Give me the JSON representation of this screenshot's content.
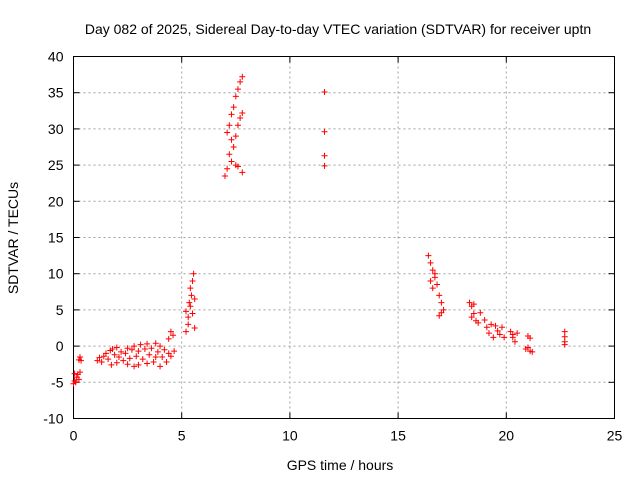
{
  "chart_data": {
    "type": "scatter",
    "title": "Day 082 of 2025, Sidereal Day-to-day VTEC variation (SDTVAR) for receiver uptn",
    "xlabel": "GPS time / hours",
    "ylabel": "SDTVAR / TECUs",
    "xlim": [
      0,
      25
    ],
    "ylim": [
      -10,
      40
    ],
    "xticks": [
      0,
      5,
      10,
      15,
      20,
      25
    ],
    "yticks": [
      -10,
      -5,
      0,
      5,
      10,
      15,
      20,
      25,
      30,
      35,
      40
    ],
    "grid": true,
    "marker": "+",
    "series": [
      {
        "name": "SDTVAR",
        "color": "#ff0000",
        "points": [
          [
            0.0,
            -5.2
          ],
          [
            0.05,
            -4.8
          ],
          [
            0.1,
            -5.0
          ],
          [
            0.15,
            -4.3
          ],
          [
            0.2,
            -3.9
          ],
          [
            0.25,
            -4.6
          ],
          [
            0.3,
            -3.6
          ],
          [
            0.05,
            -3.8
          ],
          [
            0.35,
            -2.0
          ],
          [
            0.3,
            -1.5
          ],
          [
            0.25,
            -1.9
          ],
          [
            1.1,
            -2.0
          ],
          [
            1.2,
            -1.6
          ],
          [
            1.3,
            -2.2
          ],
          [
            1.4,
            -1.4
          ],
          [
            1.5,
            -1.0
          ],
          [
            1.6,
            -1.8
          ],
          [
            1.7,
            -0.6
          ],
          [
            1.75,
            -2.6
          ],
          [
            1.8,
            -0.4
          ],
          [
            1.9,
            -1.2
          ],
          [
            2.0,
            -2.3
          ],
          [
            2.0,
            -0.2
          ],
          [
            2.1,
            -1.5
          ],
          [
            2.2,
            -0.8
          ],
          [
            2.3,
            -2.0
          ],
          [
            2.4,
            -1.0
          ],
          [
            2.5,
            -2.5
          ],
          [
            2.5,
            -0.3
          ],
          [
            2.6,
            -1.7
          ],
          [
            2.7,
            -0.5
          ],
          [
            2.8,
            -2.8
          ],
          [
            2.8,
            0.0
          ],
          [
            2.9,
            -1.4
          ],
          [
            3.0,
            -0.7
          ],
          [
            3.0,
            -2.6
          ],
          [
            3.1,
            0.2
          ],
          [
            3.2,
            -1.8
          ],
          [
            3.3,
            -0.4
          ],
          [
            3.4,
            -2.4
          ],
          [
            3.4,
            0.3
          ],
          [
            3.5,
            -1.2
          ],
          [
            3.6,
            -0.3
          ],
          [
            3.7,
            -2.2
          ],
          [
            3.8,
            0.4
          ],
          [
            3.8,
            -1.5
          ],
          [
            3.9,
            -0.8
          ],
          [
            4.0,
            -2.8
          ],
          [
            4.0,
            0.0
          ],
          [
            4.1,
            -1.5
          ],
          [
            4.2,
            -0.5
          ],
          [
            4.3,
            -2.2
          ],
          [
            4.4,
            -1.0
          ],
          [
            4.5,
            -1.4
          ],
          [
            4.4,
            1.0
          ],
          [
            4.5,
            2.0
          ],
          [
            4.6,
            1.5
          ],
          [
            4.65,
            -0.7
          ],
          [
            5.2,
            2.0
          ],
          [
            5.3,
            4.0
          ],
          [
            5.35,
            6.0
          ],
          [
            5.3,
            3.0
          ],
          [
            5.4,
            5.5
          ],
          [
            5.4,
            8.0
          ],
          [
            5.45,
            7.0
          ],
          [
            5.5,
            9.0
          ],
          [
            5.5,
            4.5
          ],
          [
            5.55,
            10.0
          ],
          [
            5.6,
            6.5
          ],
          [
            5.6,
            2.5
          ],
          [
            5.2,
            4.8
          ],
          [
            7.0,
            23.5
          ],
          [
            7.1,
            24.5
          ],
          [
            7.2,
            26.5
          ],
          [
            7.3,
            28.5
          ],
          [
            7.1,
            29.5
          ],
          [
            7.2,
            30.5
          ],
          [
            7.3,
            32.0
          ],
          [
            7.4,
            33.0
          ],
          [
            7.5,
            34.5
          ],
          [
            7.6,
            35.5
          ],
          [
            7.7,
            36.5
          ],
          [
            7.8,
            37.2
          ],
          [
            7.3,
            25.5
          ],
          [
            7.5,
            25.0
          ],
          [
            7.6,
            24.8
          ],
          [
            7.8,
            24.0
          ],
          [
            7.4,
            27.5
          ],
          [
            7.5,
            29.0
          ],
          [
            7.6,
            30.5
          ],
          [
            7.7,
            31.5
          ],
          [
            7.8,
            32.2
          ],
          [
            11.6,
            35.1
          ],
          [
            11.6,
            29.6
          ],
          [
            11.6,
            26.3
          ],
          [
            11.6,
            24.9
          ],
          [
            16.4,
            12.5
          ],
          [
            16.5,
            11.5
          ],
          [
            16.6,
            10.5
          ],
          [
            16.7,
            9.5
          ],
          [
            16.5,
            9.0
          ],
          [
            16.6,
            8.0
          ],
          [
            16.7,
            10.0
          ],
          [
            16.8,
            8.5
          ],
          [
            16.9,
            7.0
          ],
          [
            17.0,
            6.0
          ],
          [
            17.1,
            5.0
          ],
          [
            16.9,
            4.2
          ],
          [
            17.0,
            4.6
          ],
          [
            18.3,
            6.0
          ],
          [
            18.4,
            5.5
          ],
          [
            18.5,
            4.5
          ],
          [
            18.6,
            3.5
          ],
          [
            18.4,
            4.0
          ],
          [
            18.5,
            5.8
          ],
          [
            18.7,
            3.2
          ],
          [
            18.8,
            4.6
          ],
          [
            19.0,
            3.6
          ],
          [
            19.1,
            2.6
          ],
          [
            19.2,
            1.8
          ],
          [
            19.3,
            3.0
          ],
          [
            19.4,
            1.2
          ],
          [
            19.5,
            2.8
          ],
          [
            19.6,
            2.1
          ],
          [
            19.7,
            1.6
          ],
          [
            19.8,
            2.6
          ],
          [
            19.9,
            1.2
          ],
          [
            20.2,
            2.0
          ],
          [
            20.3,
            1.2
          ],
          [
            20.4,
            0.6
          ],
          [
            20.5,
            1.8
          ],
          [
            20.3,
            1.6
          ],
          [
            21.0,
            1.4
          ],
          [
            20.9,
            -0.4
          ],
          [
            21.0,
            -0.2
          ],
          [
            21.1,
            -0.7
          ],
          [
            21.2,
            -0.8
          ],
          [
            21.1,
            1.1
          ],
          [
            22.7,
            2.0
          ],
          [
            22.7,
            1.3
          ],
          [
            22.7,
            0.6
          ],
          [
            22.7,
            0.2
          ]
        ]
      }
    ]
  }
}
